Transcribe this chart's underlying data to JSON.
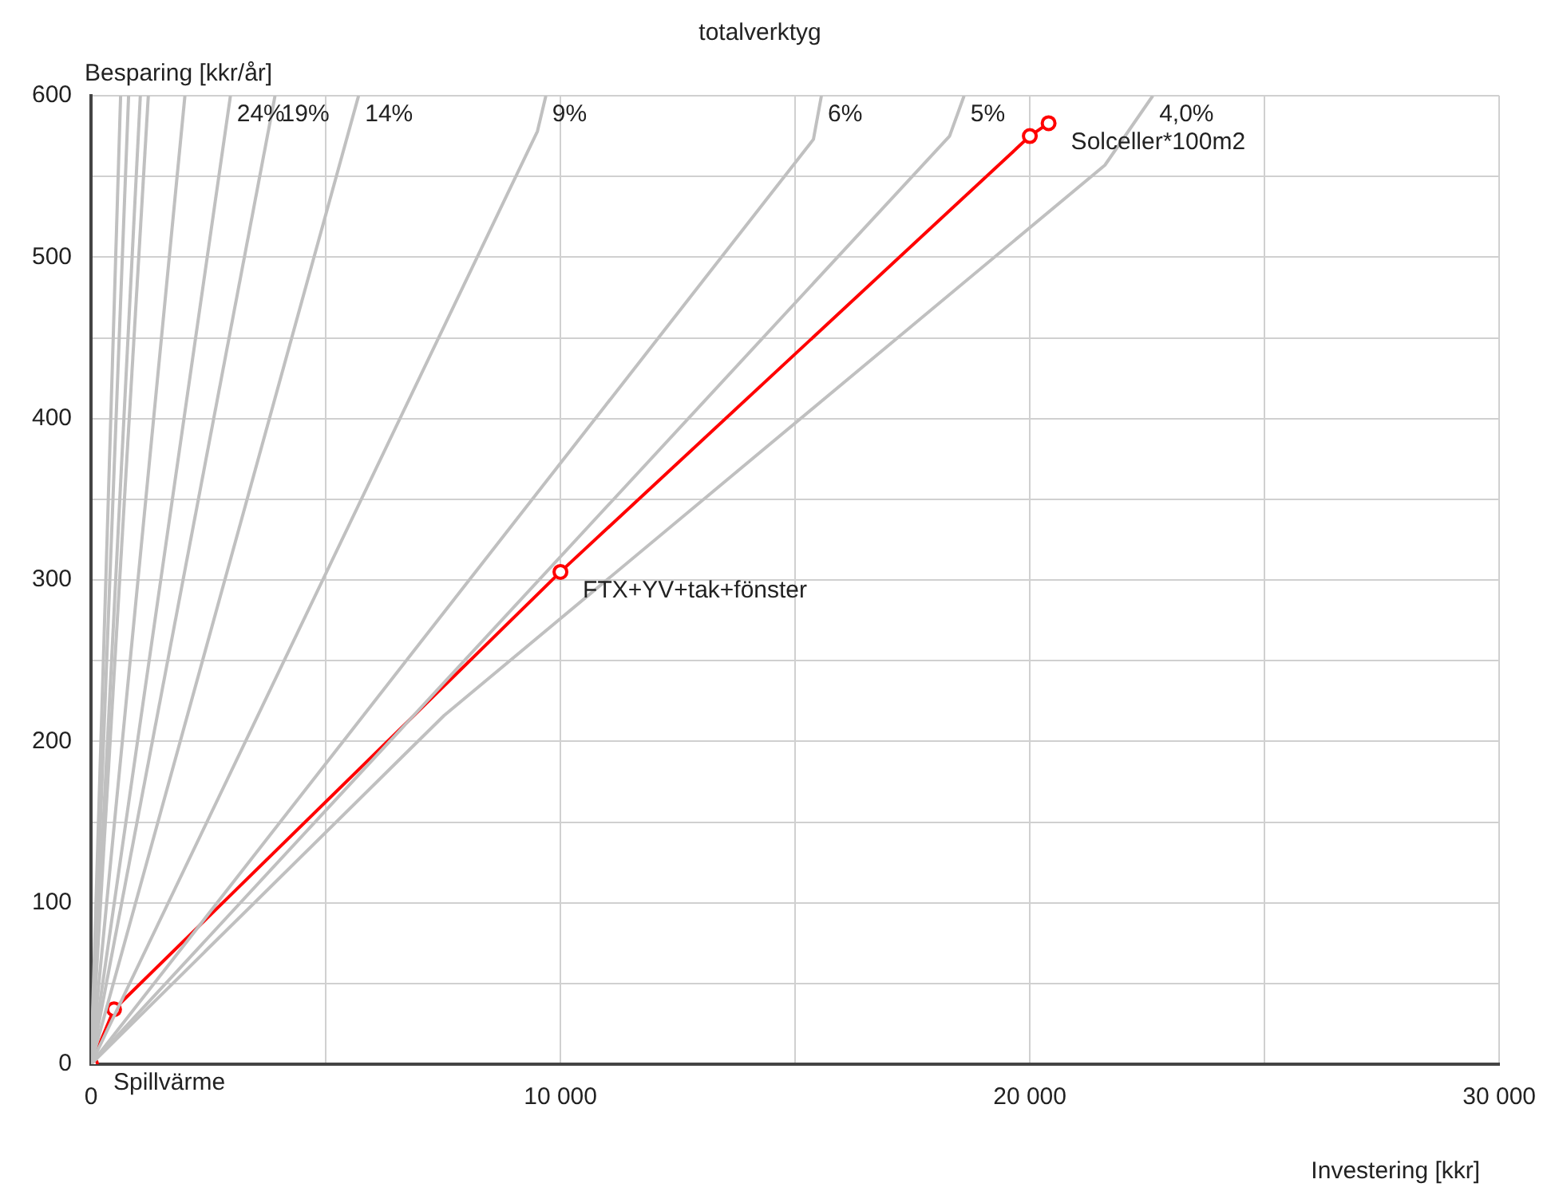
{
  "chart_data": {
    "type": "line",
    "title": "totalverktyg",
    "xlabel": "Investering [kkr]",
    "ylabel": "Besparing [kkr/år]",
    "xlim": [
      0,
      30000
    ],
    "ylim": [
      0,
      600
    ],
    "xticks": [
      0,
      {
        "value": 5000,
        "label": null
      },
      {
        "value": 10000,
        "label": "10 000"
      },
      {
        "value": 15000,
        "label": null
      },
      {
        "value": 20000,
        "label": "20 000"
      },
      {
        "value": 25000,
        "label": null
      },
      {
        "value": 30000,
        "label": "30 000"
      }
    ],
    "yticks": [
      0,
      {
        "value": 50,
        "label": null
      },
      100,
      {
        "value": 150,
        "label": null
      },
      200,
      {
        "value": 250,
        "label": null
      },
      300,
      {
        "value": 350,
        "label": null
      },
      400,
      {
        "value": 450,
        "label": null
      },
      500,
      {
        "value": 550,
        "label": null
      },
      600
    ],
    "grid": true,
    "legend": false,
    "series": [
      {
        "color": "#c0c0c0",
        "x": [
          0,
          630
        ],
        "values": [
          0,
          600
        ]
      },
      {
        "color": "#c0c0c0",
        "x": [
          0,
          800
        ],
        "values": [
          0,
          600
        ]
      },
      {
        "color": "#c0c0c0",
        "x": [
          0,
          1050
        ],
        "values": [
          0,
          600
        ]
      },
      {
        "color": "#c0c0c0",
        "x": [
          0,
          1220
        ],
        "values": [
          0,
          600
        ]
      },
      {
        "color": "#c0c0c0",
        "x": [
          0,
          2000
        ],
        "values": [
          0,
          600
        ]
      },
      {
        "name": "24%",
        "color": "#c0c0c0",
        "x": [
          0,
          2970
        ],
        "values": [
          0,
          600
        ]
      },
      {
        "name": "19%",
        "color": "#c0c0c0",
        "x": [
          0,
          3920
        ],
        "values": [
          0,
          600
        ]
      },
      {
        "name": "14%",
        "color": "#c0c0c0",
        "x": [
          0,
          5700
        ],
        "values": [
          0,
          600
        ]
      },
      {
        "name": "9%",
        "color": "#c0c0c0",
        "x": [
          0,
          9510,
          9690
        ],
        "values": [
          0,
          578,
          600
        ]
      },
      {
        "name": "6%",
        "color": "#c0c0c0",
        "x": [
          0,
          15390,
          15560
        ],
        "values": [
          0,
          573,
          600
        ]
      },
      {
        "name": "5%",
        "color": "#c0c0c0",
        "x": [
          0,
          18290,
          18600
        ],
        "values": [
          0,
          575,
          600
        ]
      },
      {
        "name": "4,0%",
        "color": "#c0c0c0",
        "x": [
          0,
          7520,
          21600,
          22620
        ],
        "values": [
          0,
          216,
          557,
          600
        ]
      },
      {
        "color": "#ff0000",
        "marker": "circle",
        "x": [
          0,
          490,
          10000,
          20000,
          20400
        ],
        "values": [
          0,
          34,
          305,
          575,
          583
        ]
      }
    ],
    "annotations": [
      {
        "text": "Spillvärme",
        "x": 0,
        "y": 0
      },
      {
        "text": "FTX+YV+tak+fönster",
        "x": 10000,
        "y": 305
      },
      {
        "text": "Solceller*100m2",
        "x": 20400,
        "y": 583
      }
    ]
  }
}
